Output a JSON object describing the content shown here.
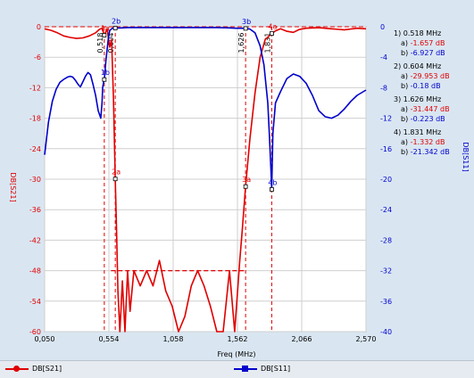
{
  "chart_data": {
    "type": "line",
    "xlabel": "Freq (MHz)",
    "ylabel_left": "DB[S21]",
    "ylabel_right": "DB[S11]",
    "xlim": [
      0.05,
      2.57
    ],
    "ylim_left": [
      -60,
      0
    ],
    "ylim_right": [
      -40,
      0
    ],
    "x_ticks": [
      "0,050",
      "0,554",
      "1,058",
      "1,562",
      "2,066",
      "2,570"
    ],
    "x_tick_values": [
      0.05,
      0.554,
      1.058,
      1.562,
      2.066,
      2.57
    ],
    "y_ticks_left": [
      "0",
      "-6",
      "-12",
      "-18",
      "-24",
      "-30",
      "-36",
      "-42",
      "-48",
      "-54",
      "-60"
    ],
    "y_ticks_right": [
      "0",
      "-4",
      "-8",
      "-12",
      "-16",
      "-20",
      "-24",
      "-28",
      "-32",
      "-36",
      "-40"
    ],
    "grid": true,
    "series": [
      {
        "name": "DB[S21]",
        "axis": "left",
        "color": "#e00000",
        "x": [
          0.05,
          0.1,
          0.15,
          0.2,
          0.25,
          0.3,
          0.35,
          0.4,
          0.45,
          0.48,
          0.5,
          0.518,
          0.54,
          0.56,
          0.575,
          0.59,
          0.604,
          0.615,
          0.625,
          0.64,
          0.66,
          0.68,
          0.7,
          0.72,
          0.75,
          0.8,
          0.85,
          0.9,
          0.95,
          1.0,
          1.05,
          1.1,
          1.15,
          1.2,
          1.25,
          1.3,
          1.35,
          1.4,
          1.45,
          1.5,
          1.54,
          1.58,
          1.6,
          1.626,
          1.66,
          1.7,
          1.74,
          1.78,
          1.81,
          1.831,
          1.86,
          1.9,
          1.95,
          2.0,
          2.05,
          2.1,
          2.2,
          2.3,
          2.4,
          2.5,
          2.57
        ],
        "y": [
          -0.4,
          -0.7,
          -1.2,
          -1.8,
          -2.1,
          -2.3,
          -2.2,
          -1.8,
          -1.2,
          -0.5,
          -0.3,
          -1.657,
          -0.4,
          -4.0,
          -2.5,
          -14.0,
          -29.953,
          -41.0,
          -52.0,
          -60.0,
          -50.0,
          -60.0,
          -48.0,
          -56.0,
          -48.0,
          -51.0,
          -48.0,
          -51.0,
          -46.0,
          -52.0,
          -55.0,
          -60.0,
          -57.0,
          -51.0,
          -48.0,
          -51.0,
          -55.0,
          -60.0,
          -60.0,
          -48.0,
          -60.0,
          -46.0,
          -40.0,
          -31.447,
          -22.0,
          -13.0,
          -6.0,
          -2.5,
          -1.8,
          -1.332,
          -0.8,
          -0.4,
          -0.9,
          -1.1,
          -0.5,
          -0.3,
          -0.2,
          -0.4,
          -0.6,
          -0.3,
          -0.4
        ],
        "ref_line": -48,
        "ref_line_x": [
          0.57,
          1.626
        ]
      },
      {
        "name": "DB[S11]",
        "axis": "right",
        "color": "#0000cc",
        "x": [
          0.05,
          0.08,
          0.11,
          0.14,
          0.17,
          0.2,
          0.23,
          0.25,
          0.27,
          0.29,
          0.31,
          0.33,
          0.35,
          0.37,
          0.39,
          0.41,
          0.43,
          0.45,
          0.47,
          0.49,
          0.5,
          0.505,
          0.51,
          0.518,
          0.53,
          0.54,
          0.55,
          0.56,
          0.58,
          0.604,
          0.65,
          0.7,
          0.8,
          0.9,
          1.0,
          1.1,
          1.2,
          1.3,
          1.4,
          1.5,
          1.55,
          1.6,
          1.626,
          1.66,
          1.7,
          1.74,
          1.77,
          1.8,
          1.815,
          1.825,
          1.831,
          1.84,
          1.86,
          1.9,
          1.95,
          2.0,
          2.05,
          2.1,
          2.15,
          2.2,
          2.25,
          2.3,
          2.35,
          2.4,
          2.45,
          2.5,
          2.57
        ],
        "y": [
          -16.8,
          -12.5,
          -9.8,
          -8.2,
          -7.3,
          -6.9,
          -6.6,
          -6.5,
          -6.6,
          -7.0,
          -7.5,
          -7.9,
          -7.2,
          -6.5,
          -6.0,
          -6.3,
          -7.6,
          -9.0,
          -11.0,
          -12.0,
          -10.0,
          -8.0,
          -7.5,
          -6.927,
          -4.5,
          -3.0,
          -1.5,
          -0.5,
          -0.2,
          -0.18,
          -0.15,
          -0.1,
          -0.1,
          -0.1,
          -0.1,
          -0.1,
          -0.1,
          -0.1,
          -0.1,
          -0.15,
          -0.2,
          -0.2,
          -0.223,
          -0.3,
          -0.8,
          -2.5,
          -5.0,
          -10.0,
          -15.0,
          -19.0,
          -21.342,
          -14.0,
          -10.0,
          -8.5,
          -6.8,
          -6.2,
          -6.5,
          -7.4,
          -9.0,
          -11.0,
          -11.8,
          -12.0,
          -11.6,
          -10.8,
          -9.8,
          -9.0,
          -8.3
        ]
      }
    ],
    "markers": [
      {
        "label": "1a",
        "x": 0.518,
        "series": "DB[S21]",
        "y": -1.657
      },
      {
        "label": "1b",
        "x": 0.518,
        "series": "DB[S11]",
        "y": -6.927
      },
      {
        "label": "2a",
        "x": 0.604,
        "series": "DB[S21]",
        "y": -29.953
      },
      {
        "label": "2b",
        "x": 0.604,
        "series": "DB[S11]",
        "y": -0.18
      },
      {
        "label": "3a",
        "x": 1.626,
        "series": "DB[S21]",
        "y": -31.447
      },
      {
        "label": "3b",
        "x": 1.626,
        "series": "DB[S11]",
        "y": -0.223
      },
      {
        "label": "4a",
        "x": 1.831,
        "series": "DB[S21]",
        "y": -1.332
      },
      {
        "label": "4b",
        "x": 1.831,
        "series": "DB[S11]",
        "y": -21.342
      }
    ],
    "marker_vlines": [
      {
        "label": "0,518",
        "x": 0.518
      },
      {
        "label": "0,604",
        "x": 0.604
      },
      {
        "label": "1,626",
        "x": 1.626
      },
      {
        "label": "1,831",
        "x": 1.831
      }
    ]
  },
  "readout": [
    {
      "head": "1) 0.518 MHz",
      "a": "-1.657 dB",
      "b": "-6.927 dB"
    },
    {
      "head": "2) 0.604 MHz",
      "a": "-29.953 dB",
      "b": "-0.18 dB"
    },
    {
      "head": "3) 1.626 MHz",
      "a": "-31.447 dB",
      "b": "-0.223 dB"
    },
    {
      "head": "4) 1.831 MHz",
      "a": "-1.332 dB",
      "b": "-21.342 dB"
    }
  ],
  "readout_prefix": {
    "a": "a)",
    "b": "b)"
  },
  "legend": {
    "s21_label": "DB[S21]",
    "s11_label": "DB[S11]",
    "s21_color": "#e00000",
    "s11_color": "#0000cc"
  }
}
